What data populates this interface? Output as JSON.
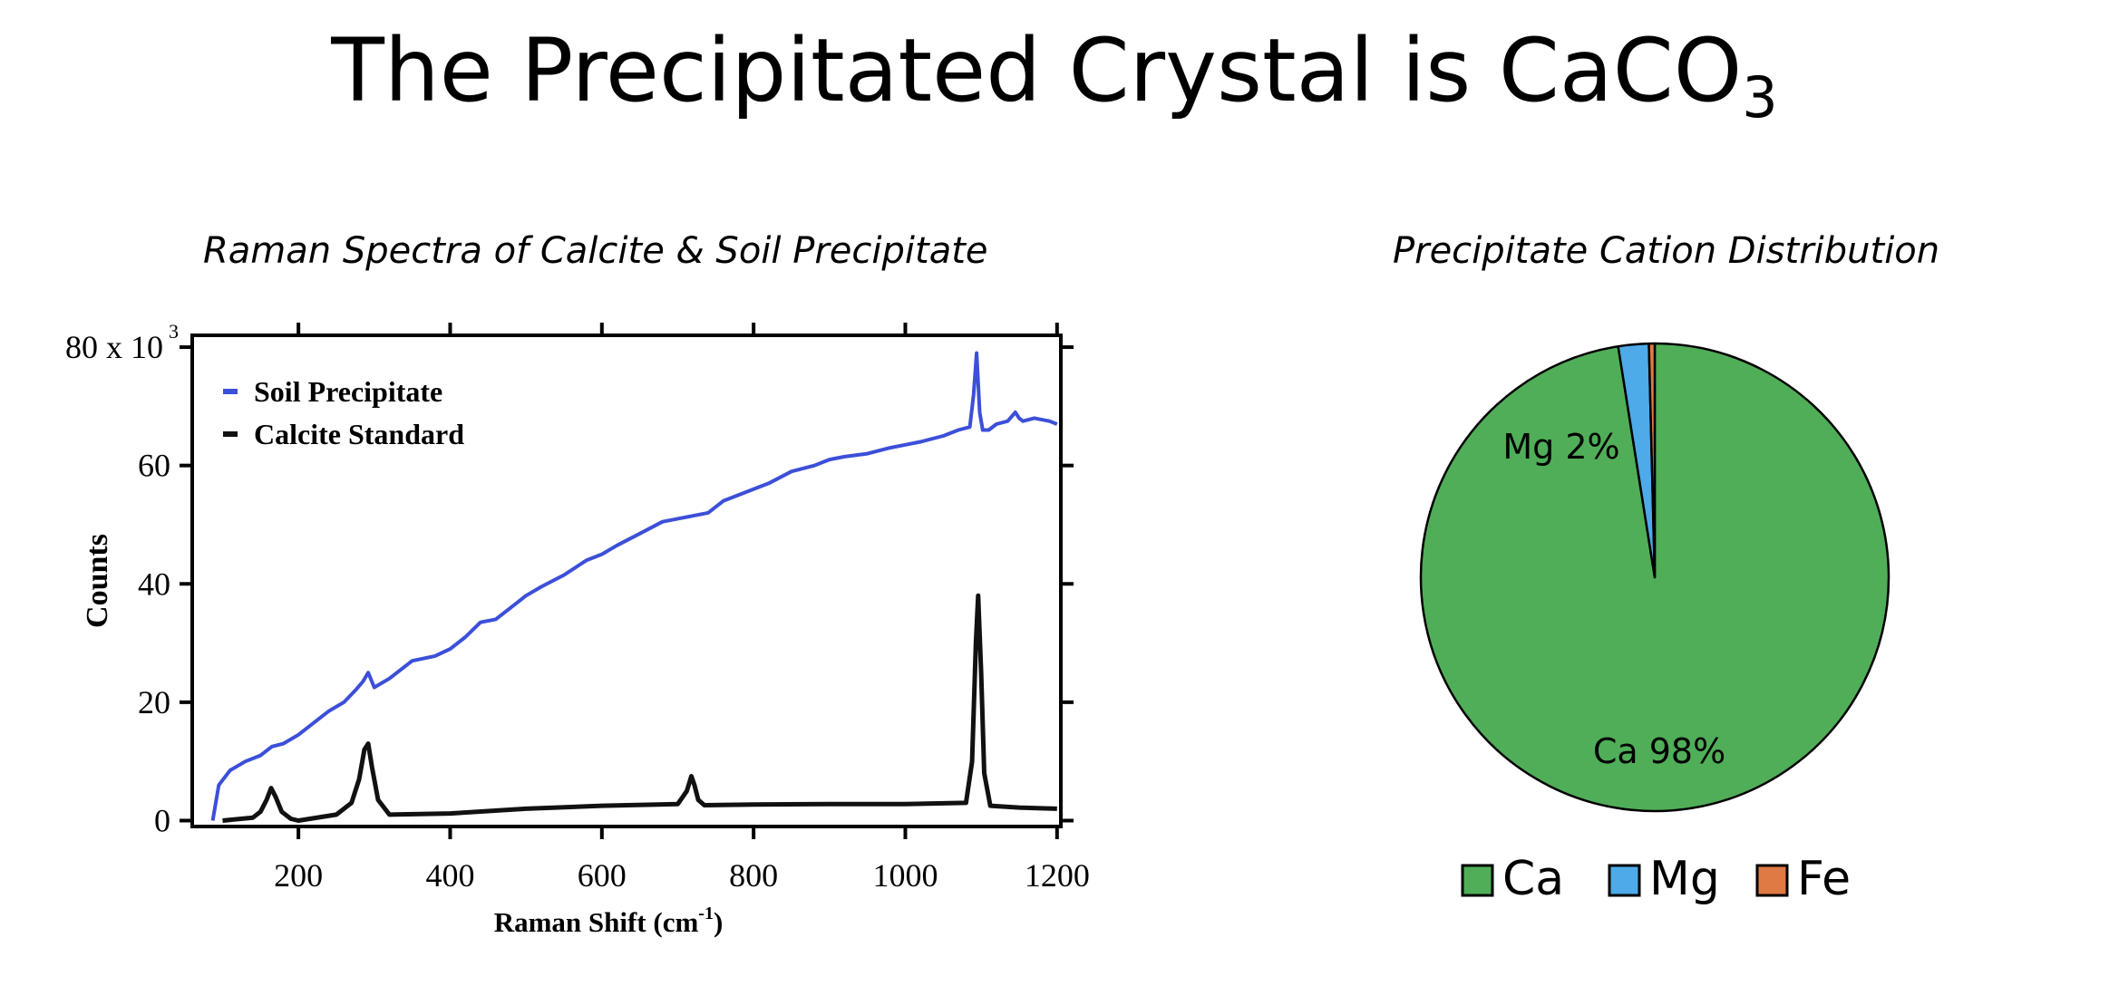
{
  "slide": {
    "title_main": "The Precipitated Crystal is CaCO",
    "title_sub": "3"
  },
  "chart_data": [
    {
      "type": "line",
      "title": "Raman Spectra of Calcite & Soil Precipitate",
      "xlabel": "Raman Shift (cm",
      "xlabel_sup": "-1",
      "xlabel_end": ")",
      "ylabel": "Counts",
      "xlim": [
        60,
        1205
      ],
      "ylim": [
        -1,
        82
      ],
      "x_ticks": [
        200,
        400,
        600,
        800,
        1000,
        1200
      ],
      "y_ticks": [
        0,
        20,
        40,
        60,
        80
      ],
      "y_tick_labels": [
        "0",
        "20",
        "40",
        "60",
        "80 x 10"
      ],
      "y_top_sup": "3",
      "grid": false,
      "legend": "top-left",
      "series": [
        {
          "name": "Soil Precipitate",
          "color": "#3c4fd8",
          "x": [
            87,
            95,
            110,
            130,
            150,
            165,
            180,
            200,
            220,
            240,
            260,
            275,
            285,
            292,
            300,
            320,
            350,
            380,
            400,
            420,
            440,
            460,
            480,
            500,
            520,
            550,
            580,
            600,
            620,
            650,
            680,
            700,
            720,
            740,
            760,
            780,
            800,
            820,
            850,
            880,
            900,
            920,
            950,
            980,
            1000,
            1020,
            1050,
            1070,
            1085,
            1090,
            1094,
            1098,
            1102,
            1110,
            1120,
            1135,
            1145,
            1150,
            1155,
            1170,
            1190,
            1200
          ],
          "y": [
            0,
            6,
            8.5,
            10,
            11,
            12.5,
            13,
            14.5,
            16.5,
            18.5,
            20,
            22,
            23.5,
            25,
            22.5,
            24,
            27,
            27.8,
            29,
            31,
            33.5,
            34,
            36,
            38,
            39.5,
            41.5,
            44,
            45,
            46.5,
            48.5,
            50.5,
            51,
            51.5,
            52,
            54,
            55,
            56,
            57,
            59,
            60,
            61,
            61.5,
            62,
            63,
            63.5,
            64,
            65,
            66,
            66.5,
            72,
            79,
            69,
            66,
            66,
            67,
            67.5,
            69,
            68,
            67.5,
            68,
            67.5,
            67
          ]
        },
        {
          "name": "Calcite Standard",
          "color": "#111111",
          "x": [
            100,
            140,
            150,
            158,
            164,
            170,
            178,
            190,
            200,
            250,
            270,
            280,
            287,
            292,
            297,
            305,
            320,
            400,
            500,
            600,
            700,
            712,
            718,
            722,
            727,
            735,
            800,
            900,
            1000,
            1080,
            1088,
            1093,
            1096,
            1100,
            1104,
            1112,
            1150,
            1200
          ],
          "y": [
            0,
            0.5,
            1.5,
            3.5,
            5.5,
            4,
            1.5,
            0.3,
            0,
            1,
            3,
            7,
            12,
            13,
            9,
            3.5,
            1,
            1.2,
            2,
            2.5,
            2.8,
            5,
            7.5,
            6,
            3.5,
            2.6,
            2.7,
            2.8,
            2.8,
            3,
            10,
            30,
            38,
            25,
            8,
            2.5,
            2.2,
            2
          ]
        }
      ]
    },
    {
      "type": "pie",
      "title": "Precipitate Cation Distribution",
      "legend": "bottom",
      "slices": [
        {
          "name": "Ca",
          "value": 97.5,
          "label": "Ca 98%",
          "color": "#50ae58"
        },
        {
          "name": "Mg",
          "value": 2.1,
          "label": "Mg 2%",
          "color": "#4eaae8"
        },
        {
          "name": "Fe",
          "value": 0.4,
          "label": "",
          "color": "#e07a45"
        }
      ]
    }
  ]
}
